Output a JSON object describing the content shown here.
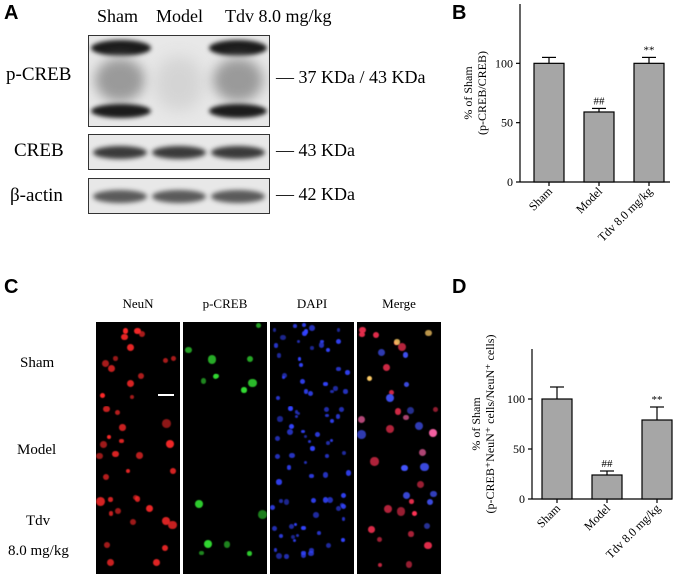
{
  "panels": {
    "a": "A",
    "b": "B",
    "c": "C",
    "d": "D"
  },
  "western_blot": {
    "columns": [
      "Sham",
      "Model",
      "Tdv 8.0 mg/kg"
    ],
    "rows": [
      {
        "label": "p-CREB",
        "size": "— 37 KDa / 43 KDa"
      },
      {
        "label": "CREB",
        "size": "— 43 KDa"
      },
      {
        "label": "β-actin",
        "size": "— 42 KDa"
      }
    ]
  },
  "chart_data": [
    {
      "type": "bar",
      "categories": [
        "Sham",
        "Model",
        "Tdv 8.0 mg/kg"
      ],
      "values": [
        100,
        59,
        100
      ],
      "errors": [
        5,
        3,
        5
      ],
      "annotations": [
        "",
        "##",
        "**"
      ],
      "ylabel_line1": "% of Sham",
      "ylabel_line2": "(p-CREB/CREB)",
      "ylim": [
        0,
        150
      ],
      "yticks": [
        "0",
        "50",
        "100"
      ],
      "bar_color": "#a6a6a6"
    },
    {
      "type": "bar",
      "categories": [
        "Sham",
        "Model",
        "Tdv 8.0 mg/kg"
      ],
      "values": [
        100,
        24,
        79
      ],
      "errors": [
        12,
        4,
        13
      ],
      "annotations": [
        "",
        "##",
        "**"
      ],
      "ylabel_line1": "% of Sham",
      "ylabel_line2": "(p-CREB⁺NeuN⁺ cells/NeuN⁺ cells)",
      "ylim": [
        0,
        150
      ],
      "yticks": [
        "0",
        "50",
        "100"
      ],
      "bar_color": "#a6a6a6"
    }
  ],
  "microscopy": {
    "channels": [
      "NeuN",
      "p-CREB",
      "DAPI",
      "Merge"
    ],
    "groups": [
      "Sham",
      "Model",
      "Tdv",
      "8.0 mg/kg"
    ]
  }
}
